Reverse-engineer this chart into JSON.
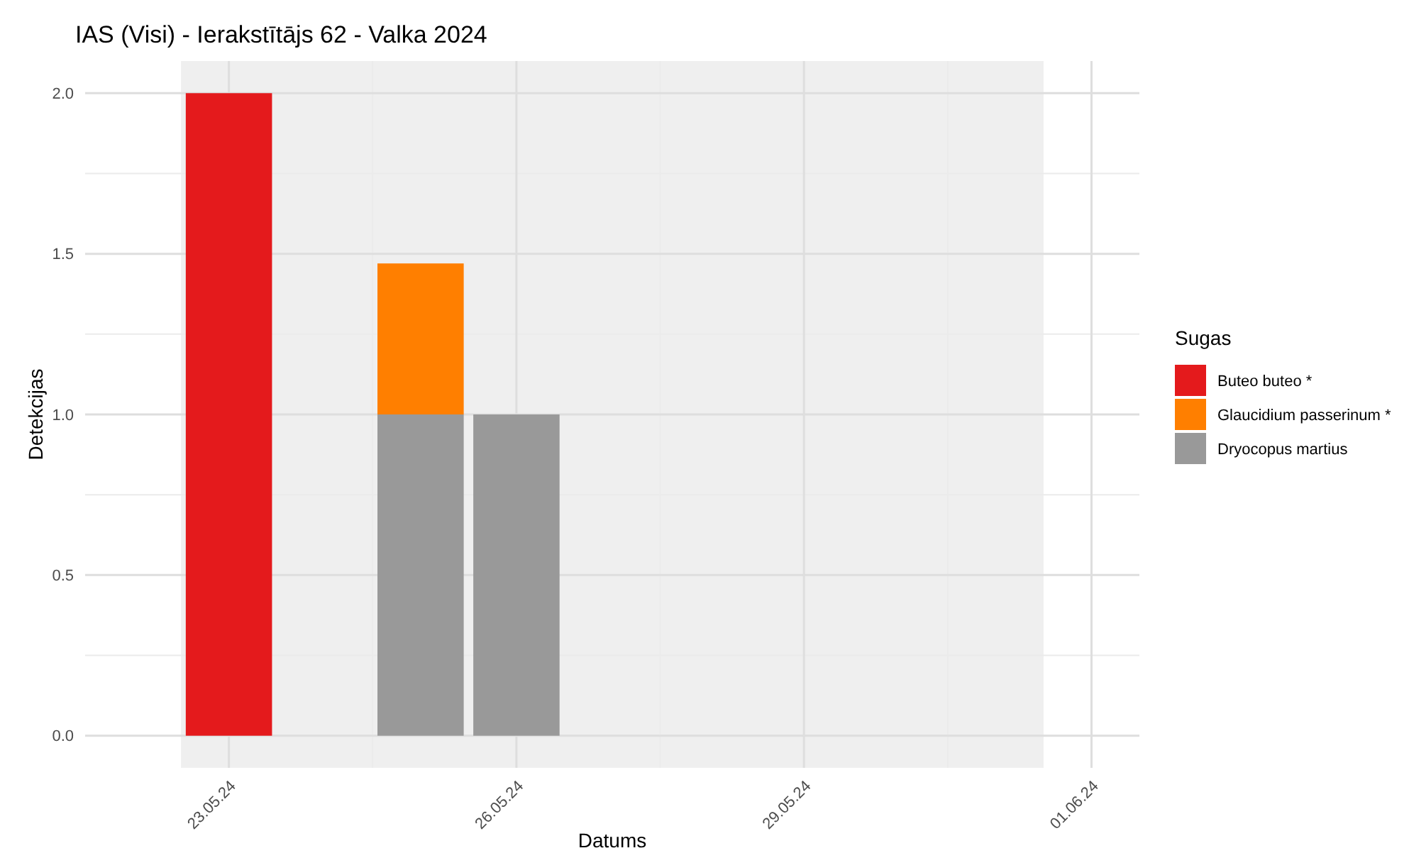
{
  "chart_data": {
    "type": "bar",
    "title": "IAS (Visi) - Ierakstītājs 62 - Valka 2024",
    "xlabel": "Datums",
    "ylabel": "Detekcijas",
    "legend_title": "Sugas",
    "x": [
      "2024-05-23",
      "2024-05-25",
      "2024-05-26"
    ],
    "stacked": true,
    "series": [
      {
        "name": "Dryocopus martius",
        "color": "#999999",
        "values": [
          null,
          1,
          1
        ]
      },
      {
        "name": "Glaucidium passerinum *",
        "color": "#ff7f00",
        "values": [
          null,
          0.47,
          null
        ]
      },
      {
        "name": "Buteo buteo *",
        "color": "#e41a1c",
        "values": [
          2,
          null,
          null
        ]
      }
    ],
    "xlim": [
      "2024-05-21T12:00",
      "2024-06-01T12:00"
    ],
    "xticks": [
      {
        "value": "2024-05-23",
        "label": "23.05.24"
      },
      {
        "value": "2024-05-26",
        "label": "26.05.24"
      },
      {
        "value": "2024-05-29",
        "label": "29.05.24"
      },
      {
        "value": "2024-06-01",
        "label": "01.06.24"
      }
    ],
    "ylim": [
      -0.1,
      2.1
    ],
    "yticks": [
      {
        "value": 0,
        "label": "0.0"
      },
      {
        "value": 0.5,
        "label": "0.5"
      },
      {
        "value": 1,
        "label": "1.0"
      },
      {
        "value": 1.5,
        "label": "1.5"
      },
      {
        "value": 2,
        "label": "2.0"
      }
    ],
    "bands": [
      {
        "axis": "x",
        "from": "2024-05-22T12:00",
        "to": "2024-05-31T12:00",
        "color": "#efefef"
      }
    ],
    "grid": true,
    "legend": "right"
  }
}
